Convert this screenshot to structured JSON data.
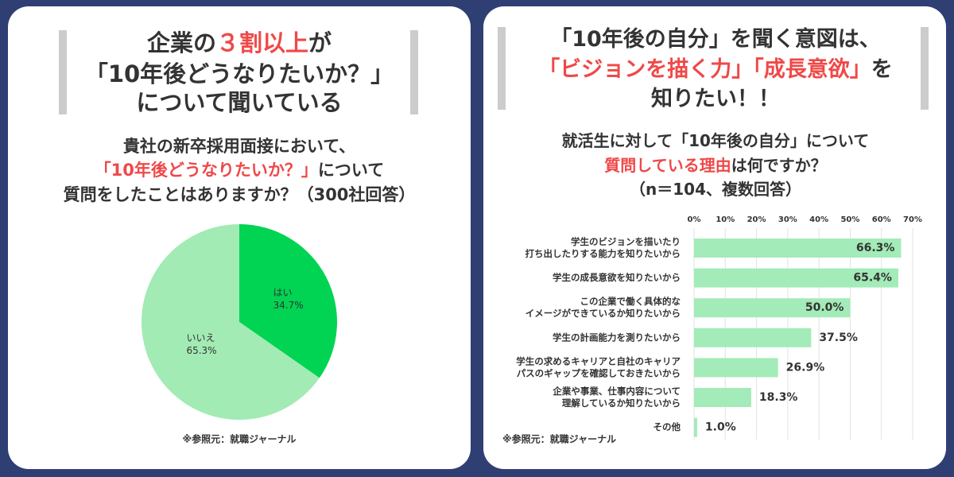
{
  "chart_data": [
    {
      "type": "pie",
      "title_lines": [
        [
          {
            "text": "企業の"
          },
          {
            "text": "３割以上",
            "color": "#f04848"
          },
          {
            "text": "が"
          }
        ],
        [
          {
            "text": "「10年後どうなりたいか？」"
          }
        ],
        [
          {
            "text": "について聞いている"
          }
        ]
      ],
      "subtitle_lines": [
        [
          {
            "text": "貴社の新卒採用面接において、"
          }
        ],
        [
          {
            "text": "「10年後どうなりたいか？」",
            "color": "#f04848"
          },
          {
            "text": "について"
          }
        ],
        [
          {
            "text": "質問をしたことはありますか？（300社回答）"
          }
        ]
      ],
      "categories": [
        "はい",
        "いいえ"
      ],
      "values": [
        34.7,
        65.3
      ],
      "value_labels": [
        "34.7%",
        "65.3%"
      ],
      "colors": [
        "#00d452",
        "#a2ebb4"
      ],
      "source": "※参照元：就職ジャーナル"
    },
    {
      "type": "bar",
      "title_lines": [
        [
          {
            "text": "「10年後の自分」を聞く意図は、"
          }
        ],
        [
          {
            "text": "「ビジョンを描く力」「成長意欲」",
            "color": "#f04848"
          },
          {
            "text": "を"
          }
        ],
        [
          {
            "text": "知りたい！！"
          }
        ]
      ],
      "subtitle_lines": [
        [
          {
            "text": "就活生に対して「10年後の自分」について"
          }
        ],
        [
          {
            "text": "質問している理由",
            "color": "#f04848"
          },
          {
            "text": "は何ですか？"
          }
        ],
        [
          {
            "text": "（n＝104、複数回答）"
          }
        ]
      ],
      "categories": [
        [
          "学生のビジョンを描いたり",
          "打ち出したりする能力を知りたいから"
        ],
        [
          "学生の成長意欲を知りたいから"
        ],
        [
          "この企業で働く具体的な",
          "イメージができているか知りたいから"
        ],
        [
          "学生の計画能力を測りたいから"
        ],
        [
          "学生の求めるキャリアと自社のキャリア",
          "パスのギャップを確認しておきたいから"
        ],
        [
          "企業や事業、仕事内容について",
          "理解しているか知りたいから"
        ],
        [
          "その他"
        ]
      ],
      "values": [
        66.3,
        65.4,
        50.0,
        37.5,
        26.9,
        18.3,
        1.0
      ],
      "value_labels": [
        "66.3%",
        "65.4%",
        "50.0%",
        "37.5%",
        "26.9%",
        "18.3%",
        "1.0%"
      ],
      "color": "#a3ebb8",
      "xlim": [
        0,
        70
      ],
      "xticks": [
        {
          "value": 0,
          "label": "0%"
        },
        {
          "value": 10,
          "label": "10%"
        },
        {
          "value": 20,
          "label": "20%"
        },
        {
          "value": 30,
          "label": "30%"
        },
        {
          "value": 40,
          "label": "40%"
        },
        {
          "value": 50,
          "label": "50%"
        },
        {
          "value": 60,
          "label": "60%"
        },
        {
          "value": 70,
          "label": "70%"
        }
      ],
      "grid": true,
      "source": "※参照元：就職ジャーナル"
    }
  ]
}
